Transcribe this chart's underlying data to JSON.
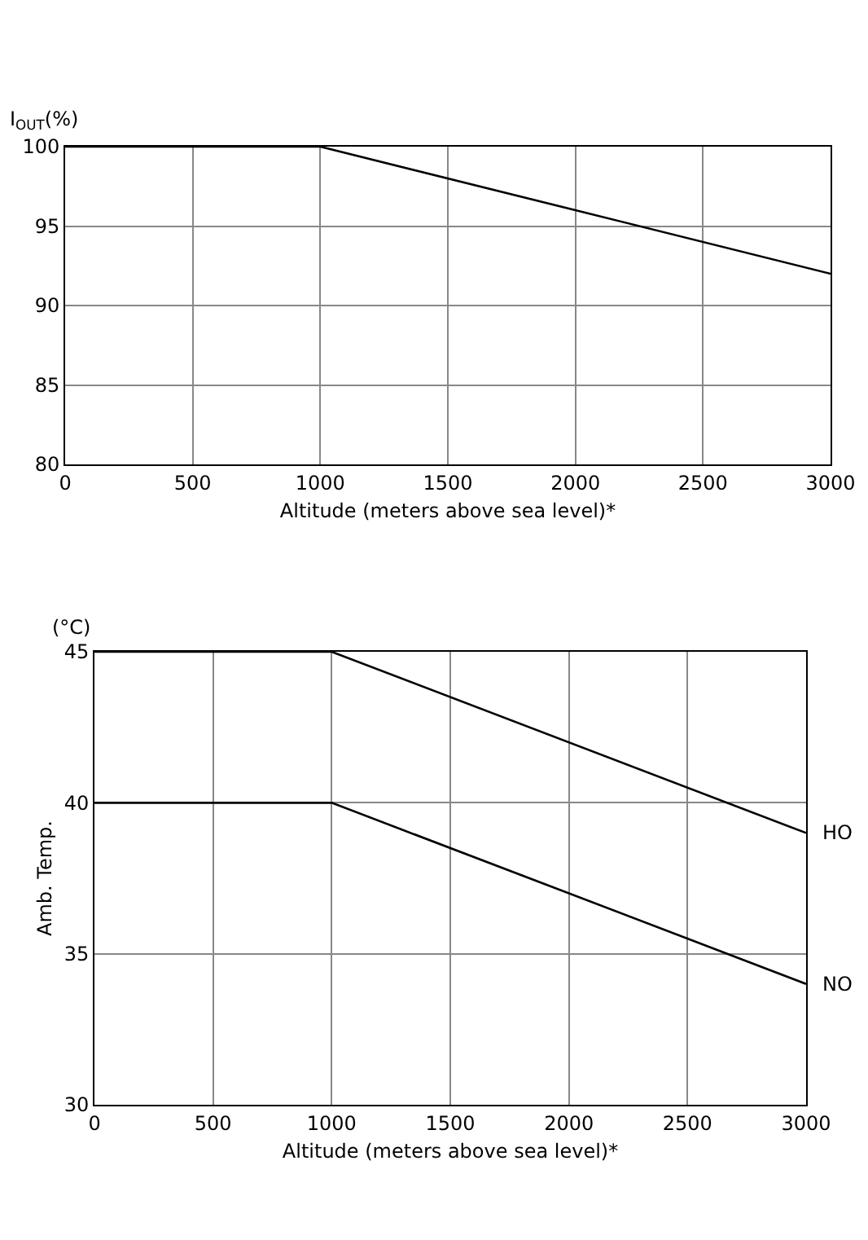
{
  "chart_data": [
    {
      "type": "line",
      "ylabel": "I$_{OUT}$(%)",
      "xlabel": "Altitude (meters above sea level)*",
      "x": [
        0,
        1000,
        3000
      ],
      "values": [
        100,
        100,
        92
      ],
      "color": "#000000",
      "xlim": [
        0,
        3000
      ],
      "ylim": [
        80,
        100
      ],
      "xticks": [
        0,
        500,
        1000,
        1500,
        2000,
        2500,
        3000
      ],
      "yticks": [
        80,
        85,
        90,
        95,
        100
      ],
      "grid": true
    },
    {
      "type": "line",
      "ylabel": "Amb. Temp.",
      "xlabel": "Altitude (meters above sea level)*",
      "annotations": [
        "(°C)"
      ],
      "x": [
        0,
        1000,
        3000
      ],
      "series": [
        {
          "name": "HO",
          "color": "#000000",
          "values": [
            45,
            45,
            39
          ]
        },
        {
          "name": "NO",
          "color": "#000000",
          "values": [
            40,
            40,
            34
          ]
        }
      ],
      "xlim": [
        0,
        3000
      ],
      "ylim": [
        30,
        45
      ],
      "xticks": [
        0,
        500,
        1000,
        1500,
        2000,
        2500,
        3000
      ],
      "yticks": [
        30,
        35,
        40,
        45
      ],
      "grid": true
    }
  ]
}
